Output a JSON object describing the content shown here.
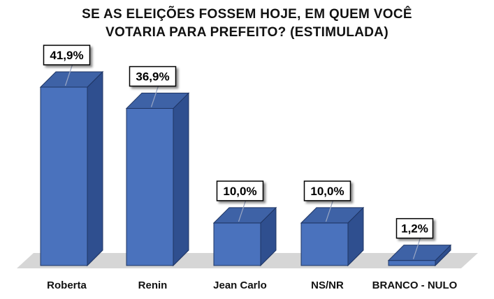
{
  "chart_data": {
    "type": "bar",
    "title_line1": "SE AS ELEIÇÕES FOSSEM HOJE, EM QUEM VOCÊ",
    "title_line2": "VOTARIA PARA PREFEITO? (ESTIMULADA)",
    "categories": [
      "Roberta",
      "Renin",
      "Jean Carlo",
      "NS/NR",
      "BRANCO - NULO"
    ],
    "values": [
      41.9,
      36.9,
      10.0,
      10.0,
      1.2
    ],
    "data_labels": [
      "41,9%",
      "36,9%",
      "10,0%",
      "10,0%",
      "1,2%"
    ],
    "unit": "%",
    "ylim": [
      0,
      41.9
    ],
    "style": "3d-column",
    "grid": false,
    "legend": "none",
    "colors": {
      "bar_front": "#4a72bd",
      "bar_side": "#2f4f8f",
      "bar_top": "#3e62a6",
      "floor": "#d6d6d6",
      "label_box": "#ffffff"
    }
  }
}
